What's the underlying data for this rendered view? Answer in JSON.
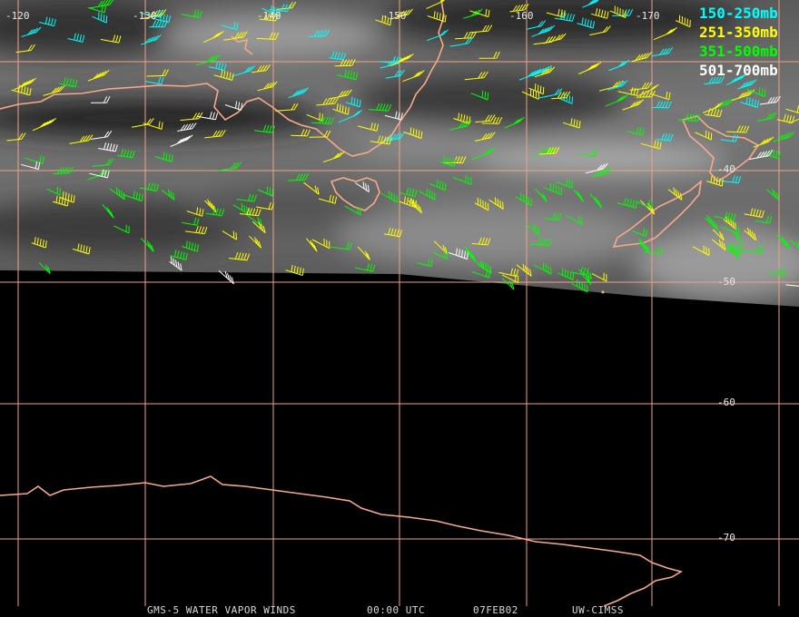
{
  "longitude_labels": [
    "-120",
    "-130",
    "-140",
    "-150",
    "-160",
    "-170"
  ],
  "latitude_labels": [
    "-40",
    "-50",
    "-60",
    "-70"
  ],
  "legend": [
    {
      "label": "150-250mb"
    },
    {
      "label": "251-350mb"
    },
    {
      "label": "351-500mb"
    },
    {
      "label": "501-700mb"
    }
  ],
  "footer": [
    "GMS-5 WATER VAPOR WINDS",
    "00:00 UTC",
    "07FEB02",
    "UW-CIMSS"
  ]
}
